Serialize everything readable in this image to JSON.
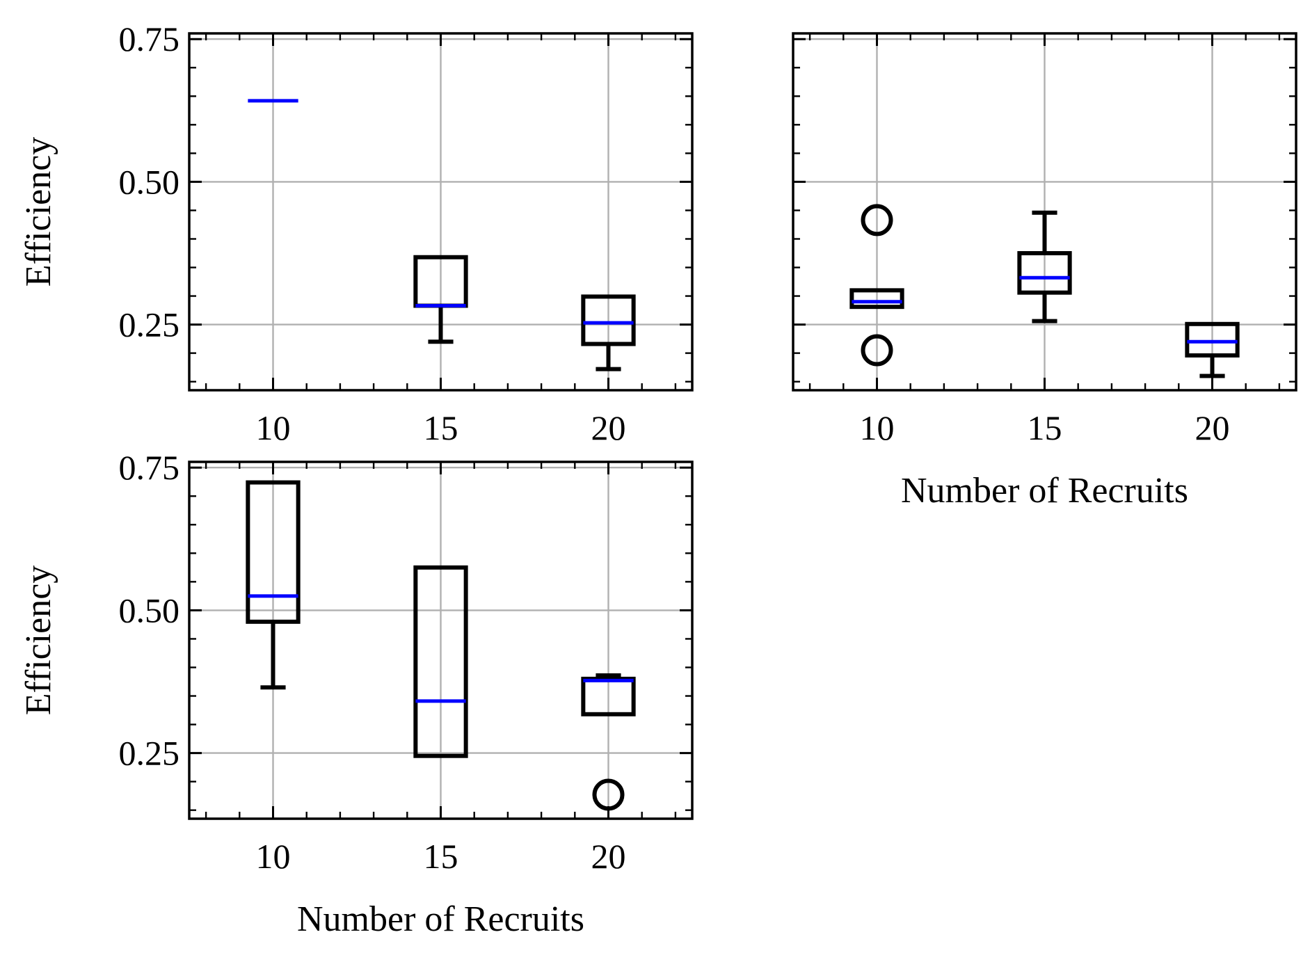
{
  "chart_data": [
    {
      "type": "box",
      "panel": "top-left",
      "categories": [
        "10",
        "15",
        "20"
      ],
      "xlabel": "",
      "ylabel": "Efficiency",
      "ylim": [
        0.135,
        0.76
      ],
      "yticks": [
        "0.75",
        "0.50",
        "0.25"
      ],
      "show_yticklabels": true,
      "grid": true,
      "boxes": [
        {
          "category": "10",
          "whisker_low": 0.642,
          "q1": 0.642,
          "median": 0.642,
          "q3": 0.642,
          "whisker_high": 0.642,
          "outliers": []
        },
        {
          "category": "15",
          "whisker_low": 0.22,
          "q1": 0.283,
          "median": 0.283,
          "q3": 0.368,
          "whisker_high": 0.368,
          "outliers": []
        },
        {
          "category": "20",
          "whisker_low": 0.172,
          "q1": 0.216,
          "median": 0.253,
          "q3": 0.299,
          "whisker_high": 0.299,
          "outliers": []
        }
      ]
    },
    {
      "type": "box",
      "panel": "top-right",
      "categories": [
        "10",
        "15",
        "20"
      ],
      "xlabel": "Number of Recruits",
      "ylabel": "",
      "ylim": [
        0.135,
        0.76
      ],
      "yticks": [
        "0.75",
        "0.50",
        "0.25"
      ],
      "show_yticklabels": false,
      "grid": true,
      "boxes": [
        {
          "category": "10",
          "whisker_low": 0.281,
          "q1": 0.281,
          "median": 0.29,
          "q3": 0.31,
          "whisker_high": 0.31,
          "outliers": [
            0.433,
            0.205
          ]
        },
        {
          "category": "15",
          "whisker_low": 0.256,
          "q1": 0.306,
          "median": 0.332,
          "q3": 0.375,
          "whisker_high": 0.446,
          "outliers": []
        },
        {
          "category": "20",
          "whisker_low": 0.16,
          "q1": 0.196,
          "median": 0.22,
          "q3": 0.251,
          "whisker_high": 0.251,
          "outliers": []
        }
      ]
    },
    {
      "type": "box",
      "panel": "bottom-left",
      "categories": [
        "10",
        "15",
        "20"
      ],
      "xlabel": "Number of Recruits",
      "ylabel": "Efficiency",
      "ylim": [
        0.135,
        0.76
      ],
      "yticks": [
        "0.75",
        "0.50",
        "0.25"
      ],
      "show_yticklabels": true,
      "grid": true,
      "boxes": [
        {
          "category": "10",
          "whisker_low": 0.365,
          "q1": 0.48,
          "median": 0.525,
          "q3": 0.724,
          "whisker_high": 0.724,
          "outliers": []
        },
        {
          "category": "15",
          "whisker_low": 0.245,
          "q1": 0.245,
          "median": 0.341,
          "q3": 0.575,
          "whisker_high": 0.575,
          "outliers": []
        },
        {
          "category": "20",
          "whisker_low": 0.318,
          "q1": 0.318,
          "median": 0.377,
          "q3": 0.38,
          "whisker_high": 0.386,
          "outliers": [
            0.177
          ]
        }
      ]
    }
  ],
  "colors": {
    "box": "#000000",
    "median": "#0000ff",
    "grid": "#b0b0b0",
    "axes": "#000000"
  }
}
